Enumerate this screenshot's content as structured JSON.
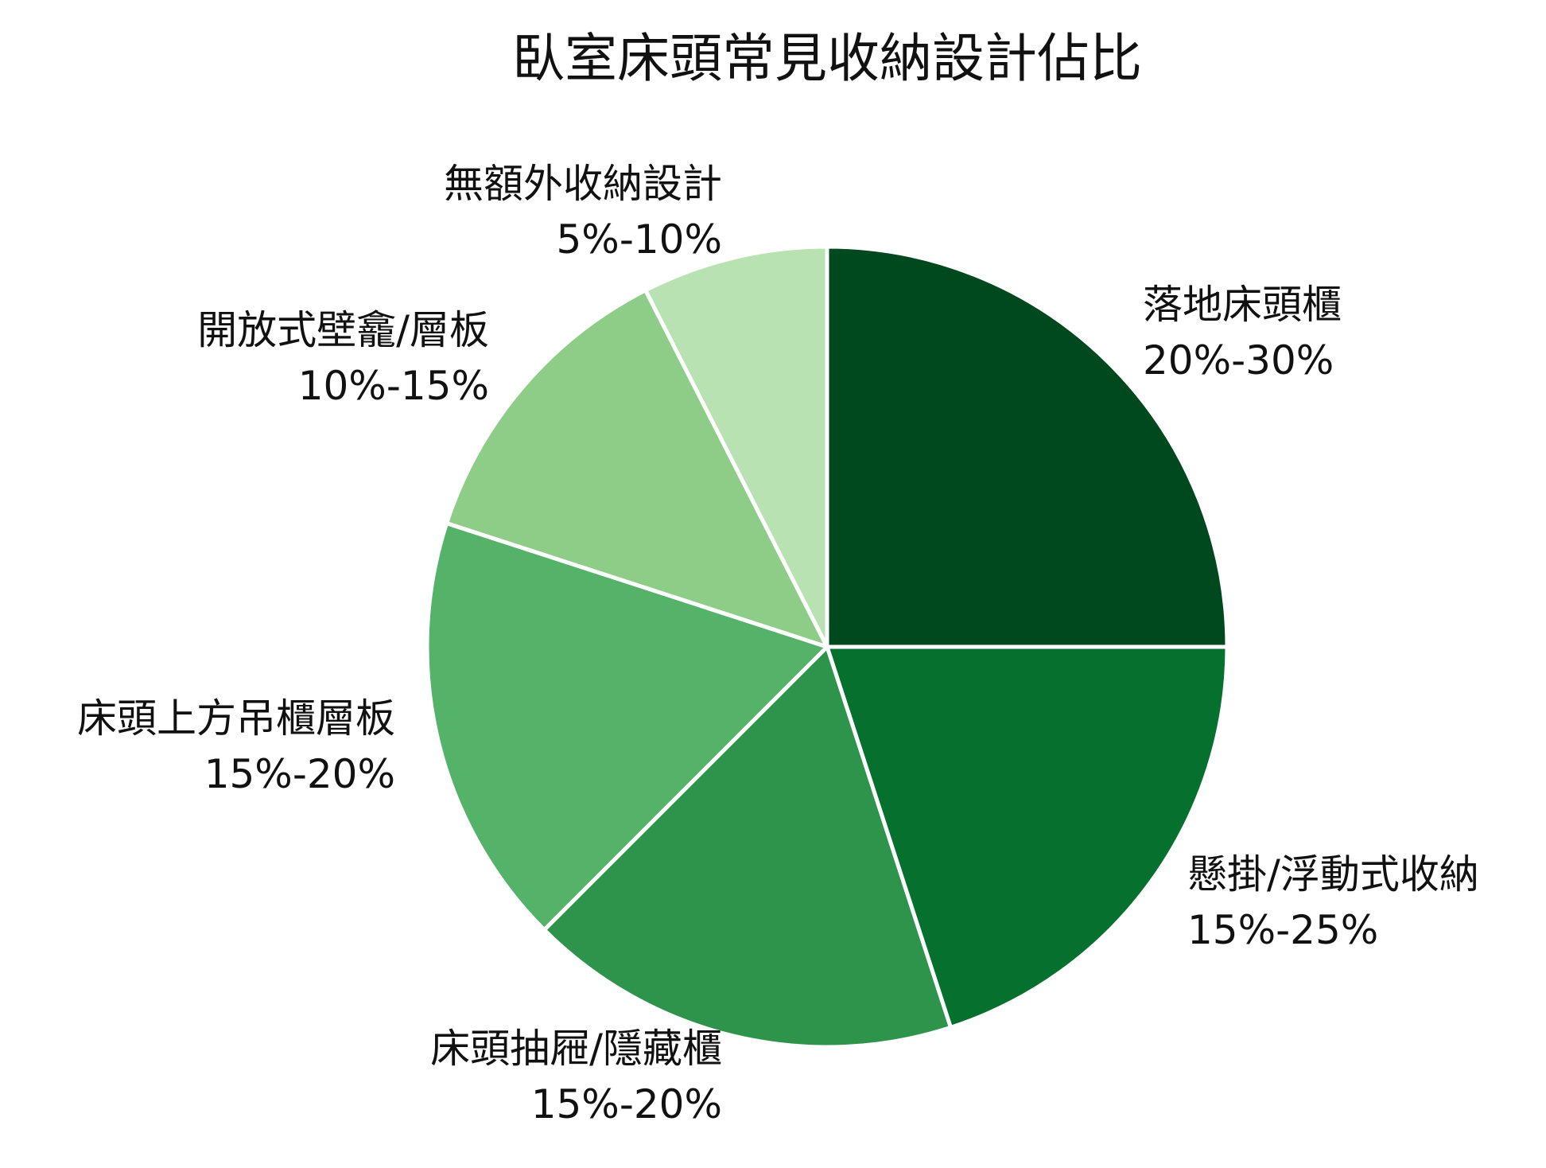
{
  "chart_data": {
    "type": "pie",
    "title": "臥室床頭常見收納設計佔比",
    "slices": [
      {
        "label": "落地床頭櫃",
        "range": "20%-30%",
        "value": 25,
        "color": "#00481e"
      },
      {
        "label": "懸掛/浮動式收納",
        "range": "15%-25%",
        "value": 20,
        "color": "#06712f"
      },
      {
        "label": "床頭抽屜/隱藏櫃",
        "range": "15%-20%",
        "value": 17.5,
        "color": "#2e934b"
      },
      {
        "label": "床頭上方吊櫃層板",
        "range": "15%-20%",
        "value": 17.5,
        "color": "#54b369"
      },
      {
        "label": "開放式壁龕/層板",
        "range": "10%-15%",
        "value": 12.5,
        "color": "#8ecd88"
      },
      {
        "label": "無額外收納設計",
        "range": "5%-10%",
        "value": 7.5,
        "color": "#b9e2b2"
      }
    ],
    "start_angle": "12 o'clock",
    "direction": "clockwise",
    "legend": "none",
    "label_placement": "outside"
  }
}
